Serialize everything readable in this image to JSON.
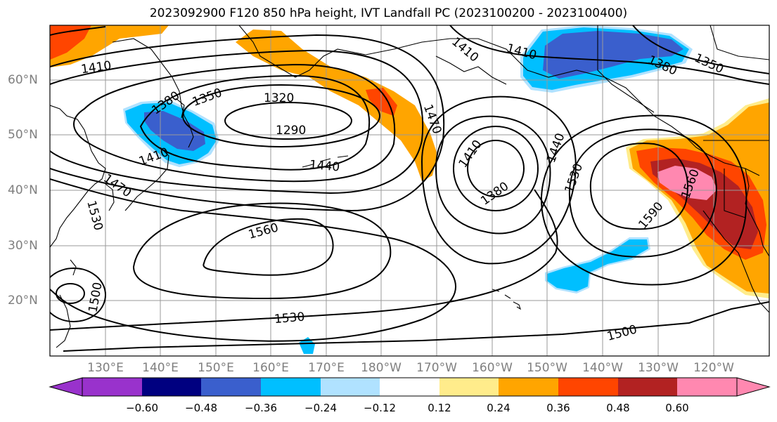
{
  "title": "2023092900 F120 850 hPa height, IVT Landfall PC (2023100200 - 2023100400)",
  "map": {
    "lat_labels": [
      "60°N",
      "50°N",
      "40°N",
      "30°N",
      "20°N"
    ],
    "lon_labels": [
      "130°E",
      "140°E",
      "150°E",
      "160°E",
      "170°E",
      "180°W",
      "170°W",
      "160°W",
      "150°W",
      "140°W",
      "130°W",
      "120°W"
    ],
    "contour_labels": [
      "1410",
      "1380",
      "1350",
      "1320",
      "1290",
      "1410",
      "1440",
      "1470",
      "1470",
      "1530",
      "1500",
      "1560",
      "1530",
      "1500",
      "1410",
      "1380",
      "1440",
      "1530",
      "1560",
      "1590",
      "1410",
      "1380",
      "1350",
      "1410"
    ],
    "shading_colors": {
      "pos_012_024": "#ffec8b",
      "pos_024_036": "#ffa500",
      "pos_036_048": "#ff4500",
      "pos_048_060": "#b22222",
      "pos_060_up": "#ff88b0",
      "neg_012_024": "#b0e2ff",
      "neg_024_036": "#00bfff",
      "neg_036_048": "#3a5fcd",
      "neg_048_060": "#000080",
      "neg_060_down": "#9932cc"
    }
  },
  "colorbar": {
    "colors": [
      "#9932cc",
      "#000080",
      "#3a5fcd",
      "#00bfff",
      "#b0e2ff",
      "#ffffff",
      "#ffec8b",
      "#ffa500",
      "#ff4500",
      "#b22222",
      "#ff88b0"
    ],
    "ticks": [
      "−0.60",
      "−0.48",
      "−0.36",
      "−0.24",
      "−0.12",
      "0.12",
      "0.24",
      "0.36",
      "0.48",
      "0.60"
    ]
  }
}
